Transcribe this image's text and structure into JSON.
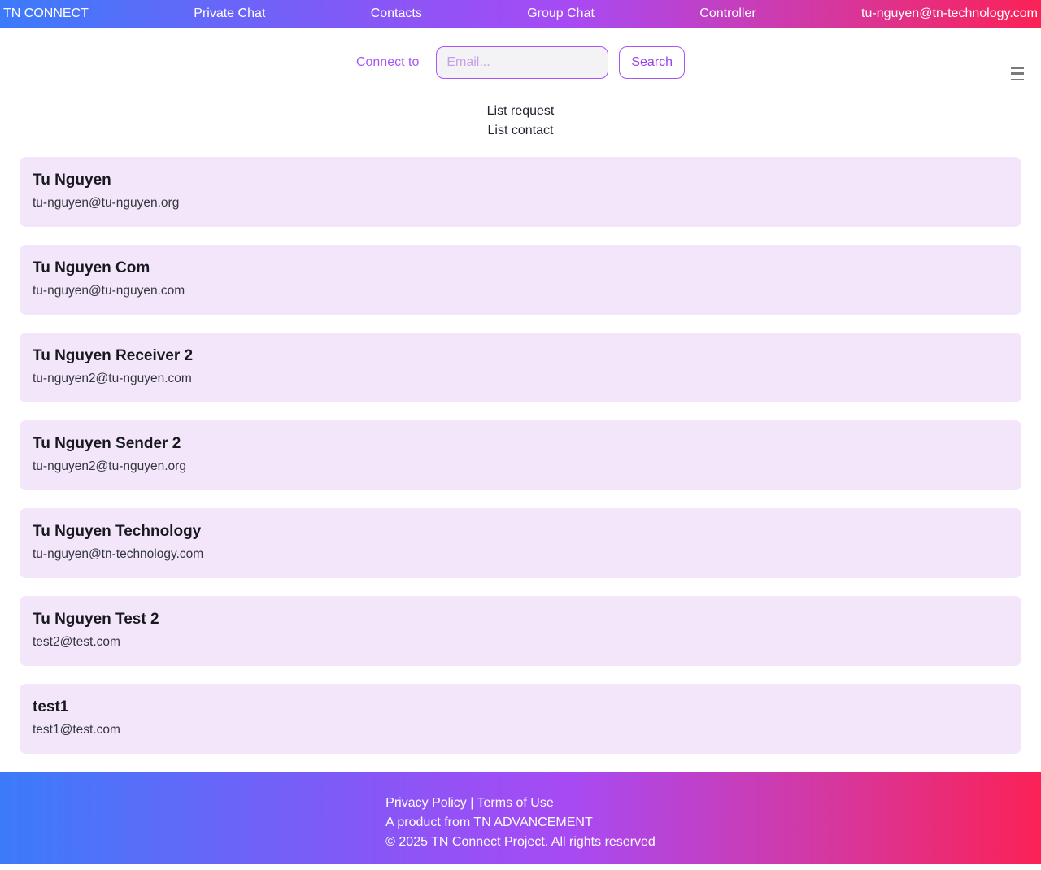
{
  "navbar": {
    "brand": "TN CONNECT",
    "items": [
      {
        "label": "Private Chat"
      },
      {
        "label": "Contacts"
      },
      {
        "label": "Group Chat"
      },
      {
        "label": "Controller"
      },
      {
        "label": "tu-nguyen@tn-technology.com"
      }
    ]
  },
  "header": {
    "connect_label": "Connect to",
    "email_placeholder": "Email...",
    "search_button": "Search",
    "menu_icon": "hamburger-icon"
  },
  "links": {
    "list_request": "List request",
    "list_contact": "List contact"
  },
  "contacts": [
    {
      "name": "Tu Nguyen",
      "email": "tu-nguyen@tu-nguyen.org"
    },
    {
      "name": "Tu Nguyen Com",
      "email": "tu-nguyen@tu-nguyen.com"
    },
    {
      "name": "Tu Nguyen Receiver 2",
      "email": "tu-nguyen2@tu-nguyen.com"
    },
    {
      "name": "Tu Nguyen Sender 2",
      "email": "tu-nguyen2@tu-nguyen.org"
    },
    {
      "name": "Tu Nguyen Technology",
      "email": "tu-nguyen@tn-technology.com"
    },
    {
      "name": "Tu Nguyen Test 2",
      "email": "test2@test.com"
    },
    {
      "name": "test1",
      "email": "test1@test.com"
    }
  ],
  "footer": {
    "legal": "Privacy Policy | Terms of Use",
    "product": "A product from TN ADVANCEMENT",
    "copyright": "© 2025 TN Connect Project. All rights reserved"
  },
  "colors": {
    "gradient_start": "#3b7bfa",
    "gradient_mid": "#a84af3",
    "gradient_end": "#fb2156",
    "accent_purple": "#a855f7",
    "card_background": "#f3e6fb",
    "nav_text": "#ffffff"
  }
}
